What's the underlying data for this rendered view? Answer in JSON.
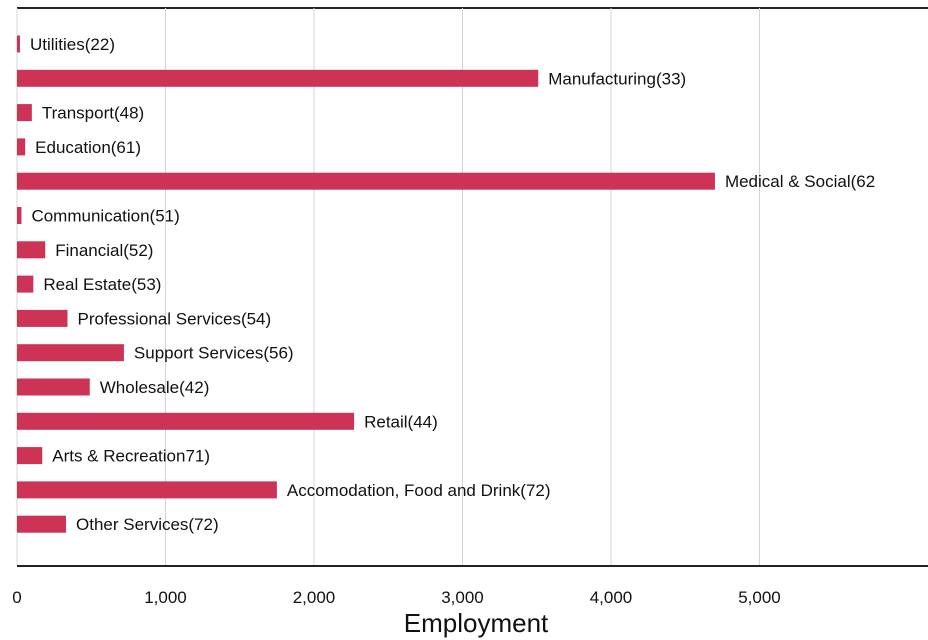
{
  "chart_data": {
    "type": "bar",
    "orientation": "horizontal",
    "categories": [
      "Utilities(22)",
      "Manufacturing(33)",
      "Transport(48)",
      "Education(61)",
      "Medical & Social(62",
      "Communication(51)",
      "Financial(52)",
      "Real Estate(53)",
      "Professional Services(54)",
      "Support Services(56)",
      "Wholesale(42)",
      "Retail(44)",
      "Arts & Recreation71)",
      "Accomodation, Food and Drink(72)",
      "Other Services(72)"
    ],
    "values": [
      20,
      3510,
      100,
      55,
      4700,
      30,
      190,
      110,
      340,
      720,
      490,
      2270,
      170,
      1750,
      330
    ],
    "xlabel": "Employment",
    "ylabel": "",
    "xlim": [
      0,
      6000
    ],
    "xticks": [
      0,
      1000,
      2000,
      3000,
      4000,
      5000
    ],
    "xtick_labels": [
      "0",
      "1,000",
      "2,000",
      "3,000",
      "4,000",
      "5,000"
    ],
    "grid": "vertical",
    "bar_color": "#cc3355"
  }
}
